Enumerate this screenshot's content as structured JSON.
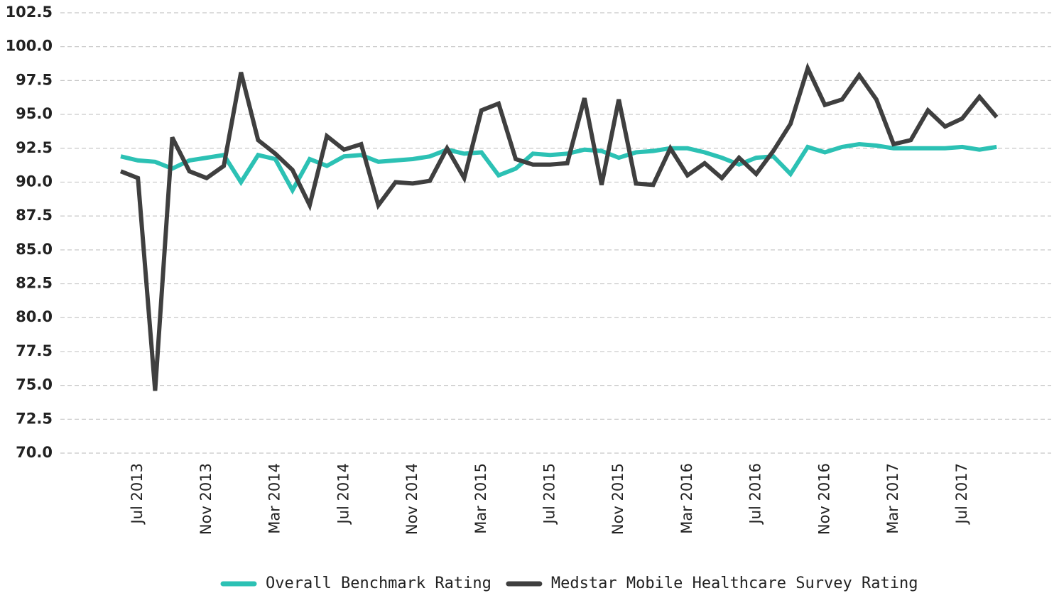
{
  "chart_data": {
    "type": "line",
    "categories": [
      null,
      "Jul 2013",
      null,
      null,
      null,
      "Nov 2013",
      null,
      null,
      null,
      "Mar 2014",
      null,
      null,
      null,
      "Jul 2014",
      null,
      null,
      null,
      "Nov 2014",
      null,
      null,
      null,
      "Mar 2015",
      null,
      null,
      null,
      "Jul 2015",
      null,
      null,
      null,
      "Nov 2015",
      null,
      null,
      null,
      "Mar 2016",
      null,
      null,
      null,
      "Jul 2016",
      null,
      null,
      null,
      "Nov 2016",
      null,
      null,
      null,
      "Mar 2017",
      null,
      null,
      null,
      "Jul 2017",
      null,
      null
    ],
    "series": [
      {
        "name": "Overall Benchmark Rating",
        "color": "#2cc1b4",
        "values": [
          91.9,
          91.6,
          91.5,
          91.0,
          91.6,
          91.8,
          92.0,
          90.0,
          92.0,
          91.7,
          89.4,
          91.7,
          91.2,
          91.9,
          92.0,
          91.5,
          91.6,
          91.7,
          91.9,
          92.4,
          92.1,
          92.2,
          90.5,
          91.0,
          92.1,
          92.0,
          92.1,
          92.4,
          92.3,
          91.8,
          92.2,
          92.3,
          92.5,
          92.5,
          92.2,
          91.8,
          91.3,
          91.8,
          91.9,
          90.6,
          92.6,
          92.2,
          92.6,
          92.8,
          92.7,
          92.5,
          92.5,
          92.5,
          92.5,
          92.6,
          92.4,
          92.6
        ]
      },
      {
        "name": "Medstar Mobile Healthcare Survey Rating",
        "color": "#3f3f3f",
        "values": [
          90.8,
          90.3,
          74.6,
          93.3,
          90.8,
          90.3,
          91.2,
          98.1,
          93.1,
          92.1,
          90.9,
          88.3,
          93.4,
          92.4,
          92.8,
          88.3,
          90.0,
          89.9,
          90.1,
          92.5,
          90.3,
          95.3,
          95.8,
          91.7,
          91.3,
          91.3,
          91.4,
          96.2,
          89.8,
          96.1,
          89.9,
          89.8,
          92.5,
          90.5,
          91.4,
          90.3,
          91.8,
          90.6,
          92.3,
          94.3,
          98.4,
          95.7,
          96.1,
          97.9,
          96.1,
          92.8,
          93.1,
          95.3,
          94.1,
          94.7,
          96.3,
          94.8
        ]
      }
    ],
    "ylim": [
      70,
      102.5
    ],
    "yticks": [
      {
        "value": 70,
        "label": "70.0"
      },
      72.5,
      {
        "value": 75,
        "label": "75.0"
      },
      77.5,
      {
        "value": 80,
        "label": "80.0"
      },
      82.5,
      {
        "value": 85,
        "label": "85.0"
      },
      87.5,
      {
        "value": 90,
        "label": "90.0"
      },
      92.5,
      {
        "value": 95,
        "label": "95.0"
      },
      97.5,
      {
        "value": 100,
        "label": "100.0"
      },
      102.5
    ],
    "grid": true,
    "legend": "bottom"
  }
}
